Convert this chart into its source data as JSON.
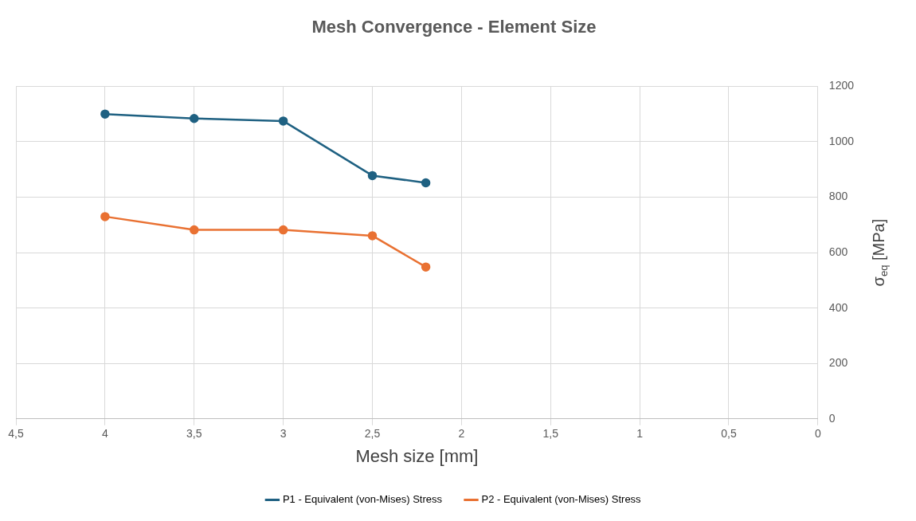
{
  "chart_data": {
    "type": "line",
    "title": "Mesh Convergence - Element Size",
    "xlabel": "Mesh size [mm]",
    "ylabel": "σ$_{eq}$ [MPa]",
    "x": [
      4,
      3.5,
      3,
      2.5,
      2.2
    ],
    "series": [
      {
        "name": "P1 - Equivalent (von-Mises) Stress",
        "color": "#1f6182",
        "values": [
          1100,
          1084,
          1075,
          878,
          852
        ]
      },
      {
        "name": "P2 - Equivalent (von-Mises) Stress",
        "color": "#e97132",
        "values": [
          730,
          682,
          682,
          661,
          548
        ]
      }
    ],
    "xlim": [
      4.5,
      0
    ],
    "xticks": [
      {
        "value": 4.5,
        "label": "4,5"
      },
      4,
      {
        "value": 3.5,
        "label": "3,5"
      },
      3,
      {
        "value": 2.5,
        "label": "2,5"
      },
      2,
      {
        "value": 1.5,
        "label": "1,5"
      },
      1,
      {
        "value": 0.5,
        "label": "0,5"
      },
      0
    ],
    "ylim": [
      0,
      1200
    ],
    "yticks": [
      0,
      200,
      400,
      600,
      800,
      1000,
      1200
    ],
    "grid": true,
    "legend": "bottom",
    "marker": "circle",
    "line_style": "solid"
  }
}
